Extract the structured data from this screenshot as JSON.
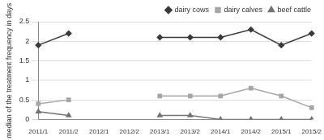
{
  "chart_data": {
    "type": "line",
    "y_label": "median of the treatment frequency in days",
    "categories": [
      "2011/1",
      "2011/2",
      "2012/1",
      "2012/2",
      "2013/1",
      "2013/2",
      "2014/1",
      "2014/2",
      "2015/1",
      "2015/2"
    ],
    "series": [
      {
        "name": "dairy cows",
        "color": "#3a3a3a",
        "marker": "diamond",
        "values": [
          1.9,
          2.2,
          null,
          null,
          2.1,
          2.1,
          2.1,
          2.3,
          1.9,
          2.2
        ]
      },
      {
        "name": "dairy calves",
        "color": "#a6a6a6",
        "marker": "square",
        "values": [
          0.4,
          0.5,
          null,
          null,
          0.6,
          0.6,
          0.6,
          0.8,
          0.6,
          0.3
        ]
      },
      {
        "name": "beef cattle",
        "color": "#737373",
        "marker": "triangle",
        "values": [
          0.2,
          0.1,
          null,
          null,
          0.1,
          0.1,
          0.0,
          0.0,
          0.0,
          0.0
        ]
      }
    ],
    "ylim": [
      0,
      2.5
    ],
    "yticks": [
      0,
      0.5,
      1,
      1.5,
      2,
      2.5
    ],
    "grid": true,
    "legend": "top"
  }
}
